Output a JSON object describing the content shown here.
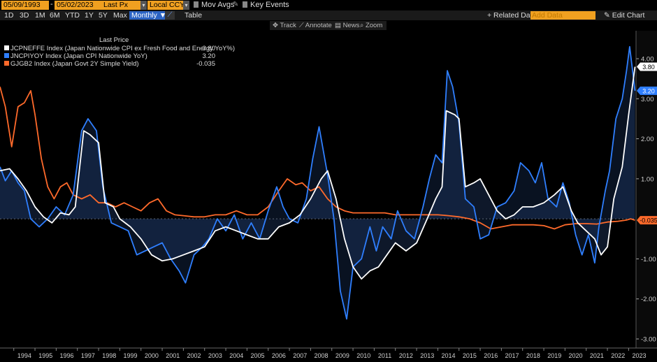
{
  "toolbar": {
    "start_date": "05/09/1993",
    "end_date": "05/02/2023",
    "price_field": "Last Px",
    "currency": "Local CCY",
    "mov_avgs": "Mov Avgs",
    "key_events": "Key Events",
    "ranges": [
      "1D",
      "3D",
      "1M",
      "6M",
      "YTD",
      "1Y",
      "5Y",
      "Max"
    ],
    "frequency": "Monthly",
    "table": "Table",
    "related_data": "+ Related Dat",
    "add_data_placeholder": "Add Data",
    "edit_chart": "Edit Chart"
  },
  "tools": {
    "track": "Track",
    "annotate": "Annotate",
    "news": "News",
    "zoom": "Zoom"
  },
  "legend": {
    "header": "Last Price",
    "series": [
      {
        "label": "JCPNEFFE Index (Japan Nationwide CPI ex Fresh Food and Energy YoY%)",
        "value": "3.80",
        "color": "#ffffff"
      },
      {
        "label": "JNCPIYOY Index (Japan CPI Nationwide YoY)",
        "value": "3.20",
        "color": "#2f7fff"
      },
      {
        "label": "GJGB2 Index (Japan Govt 2Y Simple Yield)",
        "value": "-0.035",
        "color": "#ff6a2b"
      }
    ]
  },
  "chart_data": {
    "type": "line",
    "title": "",
    "xlabel": "",
    "ylabel": "",
    "ylim": [
      -3.0,
      4.5
    ],
    "yticks": [
      "4.00",
      "3.00",
      "2.00",
      "1.00",
      "-1.00",
      "-2.00",
      "-3.00"
    ],
    "ytick_values": [
      4,
      3,
      2,
      1,
      -1,
      -2,
      -3
    ],
    "xlim": [
      1993.35,
      2023.35
    ],
    "years": [
      "1994",
      "1995",
      "1996",
      "1997",
      "1998",
      "1999",
      "2000",
      "2001",
      "2002",
      "2003",
      "2004",
      "2005",
      "2006",
      "2007",
      "2008",
      "2009",
      "2010",
      "2011",
      "2012",
      "2013",
      "2014",
      "2015",
      "2016",
      "2017",
      "2018",
      "2019",
      "2020",
      "2021",
      "2022",
      "2023"
    ],
    "last_labels": [
      {
        "series": "JCPNEFFE",
        "text": "3.80",
        "value": 3.8,
        "bg": "#ffffff",
        "fg": "#000000"
      },
      {
        "series": "JNCPIYOY",
        "text": "3.20",
        "value": 3.2,
        "bg": "#2f7fff",
        "fg": "#ffffff"
      },
      {
        "series": "GJGB2",
        "text": "-0.035",
        "value": -0.035,
        "bg": "#ff6a2b",
        "fg": "#000000"
      }
    ],
    "series": [
      {
        "name": "JCPNEFFE Index",
        "color": "#ffffff",
        "points": [
          [
            1993.35,
            1.2
          ],
          [
            1993.8,
            1.25
          ],
          [
            1994.2,
            1.0
          ],
          [
            1994.6,
            0.7
          ],
          [
            1995.0,
            0.3
          ],
          [
            1995.4,
            0.05
          ],
          [
            1995.8,
            -0.1
          ],
          [
            1996.2,
            0.15
          ],
          [
            1996.6,
            0.1
          ],
          [
            1996.9,
            0.3
          ],
          [
            1997.3,
            2.2
          ],
          [
            1997.6,
            2.1
          ],
          [
            1998.0,
            1.9
          ],
          [
            1998.3,
            0.4
          ],
          [
            1998.7,
            0.3
          ],
          [
            1999.0,
            0.0
          ],
          [
            1999.5,
            -0.2
          ],
          [
            2000.0,
            -0.5
          ],
          [
            2000.5,
            -0.9
          ],
          [
            2001.0,
            -1.05
          ],
          [
            2001.5,
            -1.0
          ],
          [
            2002.0,
            -0.9
          ],
          [
            2002.5,
            -0.8
          ],
          [
            2003.0,
            -0.7
          ],
          [
            2003.5,
            -0.3
          ],
          [
            2004.0,
            -0.2
          ],
          [
            2004.5,
            -0.3
          ],
          [
            2005.0,
            -0.4
          ],
          [
            2005.5,
            -0.5
          ],
          [
            2006.0,
            -0.5
          ],
          [
            2006.5,
            -0.2
          ],
          [
            2007.0,
            -0.1
          ],
          [
            2007.5,
            0.1
          ],
          [
            2008.0,
            0.5
          ],
          [
            2008.5,
            1.0
          ],
          [
            2008.8,
            1.2
          ],
          [
            2009.2,
            0.5
          ],
          [
            2009.6,
            -0.5
          ],
          [
            2010.0,
            -1.2
          ],
          [
            2010.4,
            -1.5
          ],
          [
            2010.8,
            -1.3
          ],
          [
            2011.2,
            -1.2
          ],
          [
            2011.6,
            -0.9
          ],
          [
            2012.0,
            -0.6
          ],
          [
            2012.5,
            -0.8
          ],
          [
            2013.0,
            -0.6
          ],
          [
            2013.5,
            0.0
          ],
          [
            2013.9,
            0.5
          ],
          [
            2014.2,
            0.8
          ],
          [
            2014.4,
            2.7
          ],
          [
            2014.8,
            2.6
          ],
          [
            2015.0,
            2.5
          ],
          [
            2015.3,
            0.8
          ],
          [
            2015.7,
            0.9
          ],
          [
            2016.0,
            1.0
          ],
          [
            2016.4,
            0.6
          ],
          [
            2016.8,
            0.2
          ],
          [
            2017.2,
            0.0
          ],
          [
            2017.6,
            0.1
          ],
          [
            2018.0,
            0.3
          ],
          [
            2018.5,
            0.3
          ],
          [
            2019.0,
            0.4
          ],
          [
            2019.5,
            0.6
          ],
          [
            2019.9,
            0.8
          ],
          [
            2020.3,
            0.2
          ],
          [
            2020.6,
            -0.1
          ],
          [
            2021.0,
            -0.3
          ],
          [
            2021.4,
            -0.5
          ],
          [
            2021.7,
            -0.9
          ],
          [
            2022.0,
            -0.7
          ],
          [
            2022.3,
            0.5
          ],
          [
            2022.7,
            1.3
          ],
          [
            2023.0,
            2.6
          ],
          [
            2023.3,
            3.8
          ]
        ]
      },
      {
        "name": "JNCPIYOY Index",
        "color": "#2f7fff",
        "points": [
          [
            1993.35,
            1.3
          ],
          [
            1993.6,
            0.95
          ],
          [
            1993.9,
            1.2
          ],
          [
            1994.2,
            0.9
          ],
          [
            1994.5,
            0.7
          ],
          [
            1994.8,
            0.0
          ],
          [
            1995.2,
            -0.2
          ],
          [
            1995.6,
            0.0
          ],
          [
            1996.0,
            0.3
          ],
          [
            1996.4,
            0.1
          ],
          [
            1996.8,
            0.6
          ],
          [
            1997.2,
            2.2
          ],
          [
            1997.5,
            2.5
          ],
          [
            1997.9,
            2.2
          ],
          [
            1998.2,
            0.8
          ],
          [
            1998.6,
            -0.1
          ],
          [
            1999.0,
            -0.2
          ],
          [
            1999.4,
            -0.3
          ],
          [
            1999.8,
            -0.9
          ],
          [
            2000.2,
            -0.8
          ],
          [
            2000.6,
            -0.7
          ],
          [
            2001.0,
            -0.6
          ],
          [
            2001.4,
            -1.0
          ],
          [
            2001.8,
            -1.3
          ],
          [
            2002.1,
            -1.6
          ],
          [
            2002.5,
            -0.9
          ],
          [
            2002.9,
            -0.7
          ],
          [
            2003.2,
            -0.5
          ],
          [
            2003.6,
            0.0
          ],
          [
            2004.0,
            -0.3
          ],
          [
            2004.4,
            0.1
          ],
          [
            2004.8,
            -0.5
          ],
          [
            2005.2,
            -0.1
          ],
          [
            2005.6,
            -0.5
          ],
          [
            2006.0,
            0.2
          ],
          [
            2006.4,
            0.8
          ],
          [
            2006.7,
            0.3
          ],
          [
            2007.0,
            0.0
          ],
          [
            2007.4,
            -0.1
          ],
          [
            2007.8,
            0.5
          ],
          [
            2008.1,
            1.5
          ],
          [
            2008.4,
            2.3
          ],
          [
            2008.8,
            1.1
          ],
          [
            2009.1,
            0.0
          ],
          [
            2009.4,
            -1.8
          ],
          [
            2009.7,
            -2.5
          ],
          [
            2010.0,
            -1.2
          ],
          [
            2010.4,
            -1.0
          ],
          [
            2010.8,
            -0.2
          ],
          [
            2011.1,
            -0.8
          ],
          [
            2011.4,
            -0.2
          ],
          [
            2011.8,
            -0.5
          ],
          [
            2012.1,
            0.2
          ],
          [
            2012.5,
            -0.3
          ],
          [
            2012.9,
            -0.5
          ],
          [
            2013.3,
            0.3
          ],
          [
            2013.6,
            1.0
          ],
          [
            2013.9,
            1.6
          ],
          [
            2014.2,
            1.4
          ],
          [
            2014.45,
            3.7
          ],
          [
            2014.7,
            3.3
          ],
          [
            2015.0,
            2.4
          ],
          [
            2015.3,
            0.5
          ],
          [
            2015.7,
            0.3
          ],
          [
            2016.0,
            -0.5
          ],
          [
            2016.4,
            -0.4
          ],
          [
            2016.8,
            0.3
          ],
          [
            2017.2,
            0.4
          ],
          [
            2017.6,
            0.7
          ],
          [
            2017.9,
            1.4
          ],
          [
            2018.3,
            1.2
          ],
          [
            2018.6,
            0.9
          ],
          [
            2018.9,
            1.4
          ],
          [
            2019.2,
            0.5
          ],
          [
            2019.6,
            0.3
          ],
          [
            2019.9,
            0.9
          ],
          [
            2020.2,
            0.4
          ],
          [
            2020.5,
            -0.4
          ],
          [
            2020.8,
            -0.9
          ],
          [
            2021.1,
            -0.4
          ],
          [
            2021.4,
            -1.1
          ],
          [
            2021.6,
            -0.2
          ],
          [
            2021.9,
            0.7
          ],
          [
            2022.1,
            1.2
          ],
          [
            2022.4,
            2.5
          ],
          [
            2022.7,
            3.0
          ],
          [
            2022.9,
            3.7
          ],
          [
            2023.05,
            4.3
          ],
          [
            2023.3,
            3.2
          ]
        ]
      },
      {
        "name": "GJGB2 Index",
        "color": "#ff6a2b",
        "points": [
          [
            1993.35,
            3.3
          ],
          [
            1993.6,
            2.8
          ],
          [
            1993.9,
            1.8
          ],
          [
            1994.2,
            2.8
          ],
          [
            1994.5,
            2.9
          ],
          [
            1994.8,
            3.2
          ],
          [
            1995.0,
            2.6
          ],
          [
            1995.3,
            1.5
          ],
          [
            1995.6,
            0.8
          ],
          [
            1995.9,
            0.5
          ],
          [
            1996.2,
            0.8
          ],
          [
            1996.5,
            0.9
          ],
          [
            1996.8,
            0.6
          ],
          [
            1997.2,
            0.5
          ],
          [
            1997.6,
            0.6
          ],
          [
            1998.0,
            0.4
          ],
          [
            1998.4,
            0.4
          ],
          [
            1998.8,
            0.3
          ],
          [
            1999.2,
            0.4
          ],
          [
            1999.6,
            0.3
          ],
          [
            2000.0,
            0.2
          ],
          [
            2000.4,
            0.4
          ],
          [
            2000.8,
            0.5
          ],
          [
            2001.2,
            0.2
          ],
          [
            2001.6,
            0.1
          ],
          [
            2002.0,
            0.08
          ],
          [
            2002.5,
            0.05
          ],
          [
            2003.0,
            0.05
          ],
          [
            2003.5,
            0.1
          ],
          [
            2004.0,
            0.1
          ],
          [
            2004.5,
            0.2
          ],
          [
            2005.0,
            0.1
          ],
          [
            2005.5,
            0.1
          ],
          [
            2006.0,
            0.3
          ],
          [
            2006.5,
            0.7
          ],
          [
            2006.9,
            1.0
          ],
          [
            2007.3,
            0.85
          ],
          [
            2007.6,
            0.9
          ],
          [
            2008.0,
            0.7
          ],
          [
            2008.4,
            0.8
          ],
          [
            2008.8,
            0.5
          ],
          [
            2009.2,
            0.3
          ],
          [
            2009.6,
            0.2
          ],
          [
            2010.0,
            0.15
          ],
          [
            2010.5,
            0.15
          ],
          [
            2011.0,
            0.15
          ],
          [
            2011.5,
            0.15
          ],
          [
            2012.0,
            0.1
          ],
          [
            2012.5,
            0.1
          ],
          [
            2013.0,
            0.1
          ],
          [
            2013.5,
            0.1
          ],
          [
            2014.0,
            0.1
          ],
          [
            2014.5,
            0.08
          ],
          [
            2015.0,
            0.05
          ],
          [
            2015.5,
            0.0
          ],
          [
            2016.0,
            -0.1
          ],
          [
            2016.5,
            -0.25
          ],
          [
            2017.0,
            -0.2
          ],
          [
            2017.5,
            -0.15
          ],
          [
            2018.0,
            -0.15
          ],
          [
            2018.5,
            -0.15
          ],
          [
            2019.0,
            -0.17
          ],
          [
            2019.5,
            -0.25
          ],
          [
            2020.0,
            -0.15
          ],
          [
            2020.5,
            -0.12
          ],
          [
            2021.0,
            -0.12
          ],
          [
            2021.5,
            -0.13
          ],
          [
            2022.0,
            -0.08
          ],
          [
            2022.5,
            -0.06
          ],
          [
            2022.9,
            -0.03
          ],
          [
            2023.1,
            0.0
          ],
          [
            2023.3,
            -0.035
          ]
        ]
      }
    ]
  }
}
